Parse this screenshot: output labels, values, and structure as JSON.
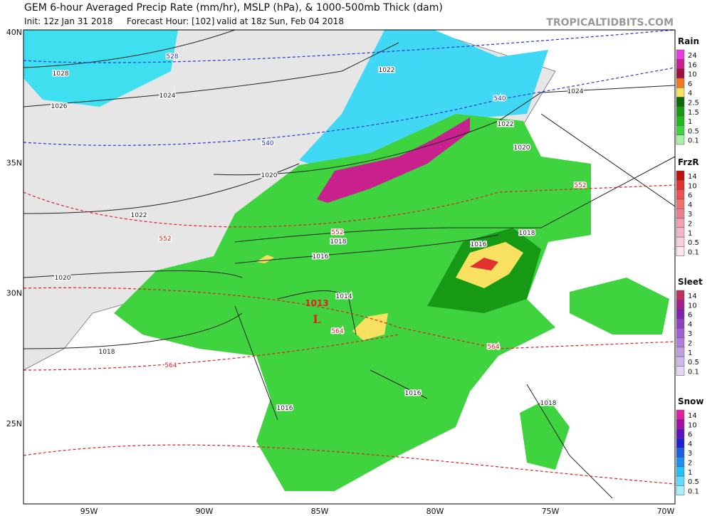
{
  "header": {
    "title": "GEM 6-hour Averaged Precip Rate (mm/hr), MSLP (hPa), & 1000-500mb Thick (dam)",
    "init": "Init: 12z Jan 31 2018",
    "forecast": "Forecast Hour: [102]",
    "valid": "valid at 18z Sun, Feb 04 2018",
    "brand": "TROPICALTIDBITS.COM"
  },
  "map": {
    "lat_labels": [
      "40N",
      "35N",
      "30N",
      "25N"
    ],
    "lon_labels": [
      "95W",
      "90W",
      "85W",
      "80W",
      "75W",
      "70W"
    ],
    "isobar_labels": [
      "1028",
      "1026",
      "1024",
      "1022",
      "1024",
      "1022",
      "1020",
      "1020",
      "1022",
      "1018",
      "1016",
      "1016",
      "1018",
      "1020",
      "1014",
      "1018",
      "1016",
      "1016",
      "1018"
    ],
    "thickness_labels": [
      "528",
      "540",
      "540",
      "552",
      "552",
      "552",
      "564",
      "564",
      "564"
    ],
    "low": {
      "pressure": "1013",
      "symbol": "L"
    }
  },
  "legends": [
    {
      "title": "Rain",
      "levels": [
        24,
        16,
        10,
        6,
        4,
        2.5,
        1.5,
        1,
        0.5,
        0.1
      ],
      "colors": [
        "#e83ee0",
        "#c8208c",
        "#a01040",
        "#f07820",
        "#f8e060",
        "#0a6a0a",
        "#169a16",
        "#22b822",
        "#3fd43f",
        "#a8f0a8"
      ]
    },
    {
      "title": "FrzR",
      "levels": [
        14,
        10,
        6,
        4,
        3,
        2,
        1,
        0.5,
        0.1
      ],
      "colors": [
        "#c01010",
        "#e03030",
        "#f05050",
        "#f07070",
        "#e88090",
        "#f0a0b0",
        "#f0b8c8",
        "#f8d0dc",
        "#fbe6ee"
      ]
    },
    {
      "title": "Sleet",
      "levels": [
        14,
        10,
        6,
        4,
        3,
        2,
        1,
        0.5,
        0.1
      ],
      "colors": [
        "#c03060",
        "#a02090",
        "#8020b0",
        "#9040c0",
        "#a060d0",
        "#b080d8",
        "#c0a0e0",
        "#d0b8ec",
        "#e4d8f6"
      ]
    },
    {
      "title": "Snow",
      "levels": [
        14,
        10,
        6,
        4,
        3,
        2,
        1,
        0.5,
        0.1
      ],
      "colors": [
        "#e020a0",
        "#a010a0",
        "#6010c0",
        "#2020d0",
        "#2060e0",
        "#2090f0",
        "#20c0f8",
        "#60dcfc",
        "#a8f0fe"
      ]
    }
  ]
}
